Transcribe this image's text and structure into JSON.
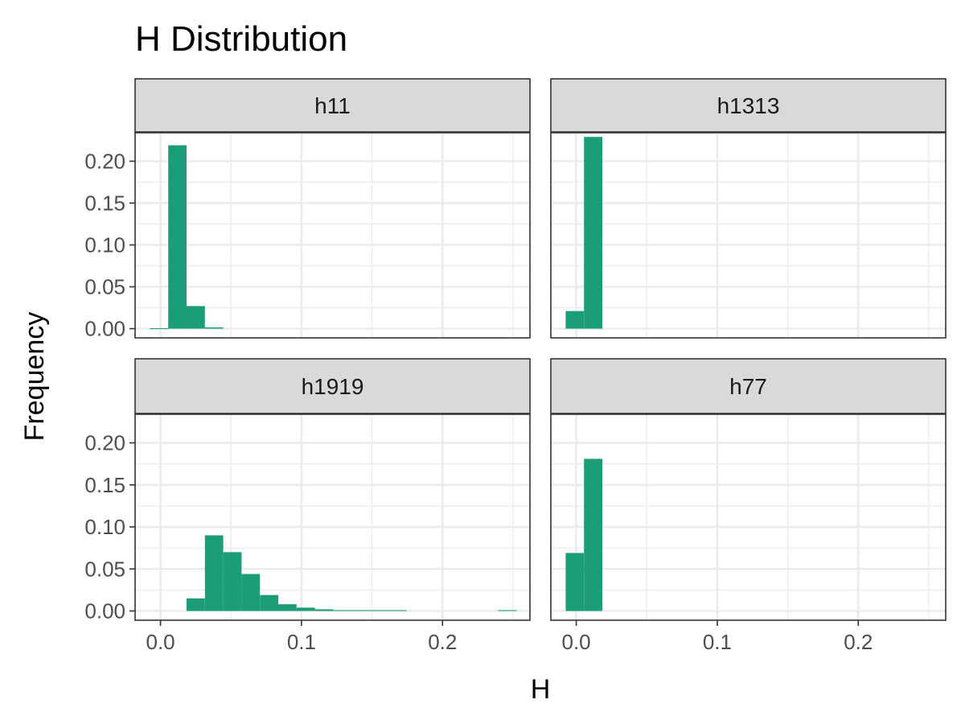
{
  "chart_data": {
    "type": "bar",
    "title": "H Distribution",
    "xlabel": "H",
    "ylabel": "Frequency",
    "xlim": [
      -0.018,
      0.262
    ],
    "ylim": [
      -0.011,
      0.234
    ],
    "x_ticks": [
      "0.0",
      "0.1",
      "0.2"
    ],
    "y_ticks": [
      "0.00",
      "0.05",
      "0.10",
      "0.15",
      "0.20"
    ],
    "grid": true,
    "bar_color": "#1B9E77",
    "panels": [
      {
        "name": "h11",
        "bins": [
          {
            "x0": -0.0075,
            "x1": 0.0055,
            "value": 0.0005
          },
          {
            "x0": 0.0055,
            "x1": 0.0185,
            "value": 0.219
          },
          {
            "x0": 0.0185,
            "x1": 0.0315,
            "value": 0.027
          },
          {
            "x0": 0.0315,
            "x1": 0.0445,
            "value": 0.0015
          }
        ]
      },
      {
        "name": "h1313",
        "bins": [
          {
            "x0": -0.0075,
            "x1": 0.0055,
            "value": 0.021
          },
          {
            "x0": 0.0055,
            "x1": 0.0185,
            "value": 0.229
          }
        ]
      },
      {
        "name": "h1919",
        "bins": [
          {
            "x0": 0.0185,
            "x1": 0.0315,
            "value": 0.015
          },
          {
            "x0": 0.0315,
            "x1": 0.0445,
            "value": 0.09
          },
          {
            "x0": 0.0445,
            "x1": 0.0575,
            "value": 0.07
          },
          {
            "x0": 0.0575,
            "x1": 0.0705,
            "value": 0.044
          },
          {
            "x0": 0.0705,
            "x1": 0.0835,
            "value": 0.019
          },
          {
            "x0": 0.0835,
            "x1": 0.0965,
            "value": 0.008
          },
          {
            "x0": 0.0965,
            "x1": 0.1095,
            "value": 0.004
          },
          {
            "x0": 0.1095,
            "x1": 0.1225,
            "value": 0.002
          },
          {
            "x0": 0.1225,
            "x1": 0.1355,
            "value": 0.001
          },
          {
            "x0": 0.1355,
            "x1": 0.1485,
            "value": 0.001
          },
          {
            "x0": 0.1485,
            "x1": 0.1615,
            "value": 0.001
          },
          {
            "x0": 0.1615,
            "x1": 0.1745,
            "value": 0.001
          },
          {
            "x0": 0.2395,
            "x1": 0.2525,
            "value": 0.001
          }
        ]
      },
      {
        "name": "h77",
        "bins": [
          {
            "x0": -0.0075,
            "x1": 0.0055,
            "value": 0.069
          },
          {
            "x0": 0.0055,
            "x1": 0.0185,
            "value": 0.181
          }
        ]
      }
    ]
  }
}
